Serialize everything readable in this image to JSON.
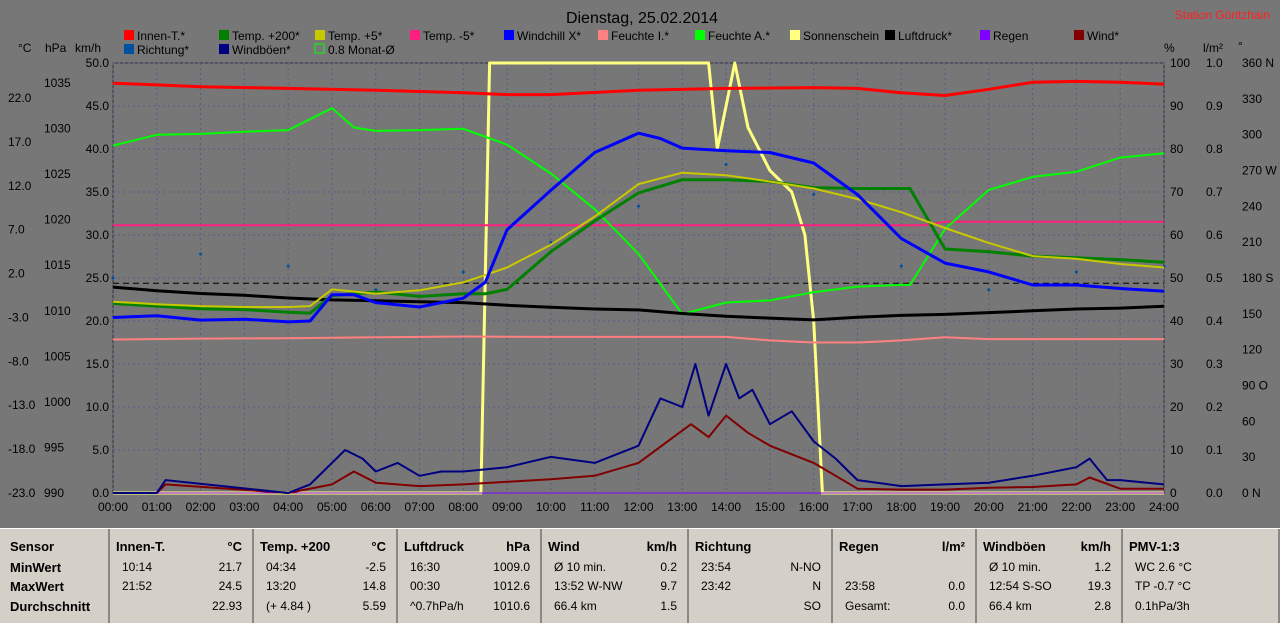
{
  "title": "Dienstag, 25.02.2014",
  "station": "Station Göritzhain",
  "legend": [
    {
      "label": "Innen-T.*",
      "color": "#ff0000"
    },
    {
      "label": "Temp. +200*",
      "color": "#008000"
    },
    {
      "label": "Temp. +5*",
      "color": "#c8c800"
    },
    {
      "label": "Temp. -5*",
      "color": "#ff1f7f"
    },
    {
      "label": "Windchill X*",
      "color": "#0000ff"
    },
    {
      "label": "Feuchte I.*",
      "color": "#ff8080"
    },
    {
      "label": "Feuchte A.*",
      "color": "#00ff00"
    },
    {
      "label": "Sonnenschein",
      "color": "#ffff80"
    },
    {
      "label": "Luftdruck*",
      "color": "#000000"
    },
    {
      "label": "Regen",
      "color": "#8000ff"
    },
    {
      "label": "Wind*",
      "color": "#800000"
    },
    {
      "label": "Richtung*",
      "color": "#0050a0"
    },
    {
      "label": "Windböen*",
      "color": "#000080"
    },
    {
      "label": "0.8 Monat-Ø",
      "color": "#00ff00"
    }
  ],
  "axis_units": {
    "celsius": "°C",
    "hpa": "hPa",
    "kmh": "km/h",
    "percent": "%",
    "lm2": "l/m²",
    "deg": "°"
  },
  "left_ticks_c": [
    "22.0",
    "17.0",
    "12.0",
    "7.0",
    "2.0",
    "-3.0",
    "-8.0",
    "-13.0",
    "-18.0",
    "-23.0"
  ],
  "left_ticks_hpa": [
    "1035",
    "1030",
    "1025",
    "1020",
    "1015",
    "1010",
    "1005",
    "1000",
    "995",
    "990"
  ],
  "left_ticks_kmh": [
    "50.0",
    "45.0",
    "40.0",
    "35.0",
    "30.0",
    "25.0",
    "20.0",
    "15.0",
    "10.0",
    "5.0",
    "0.0"
  ],
  "right_ticks_pct": [
    "100",
    "90",
    "80",
    "70",
    "60",
    "50",
    "40",
    "30",
    "20",
    "10",
    "0"
  ],
  "right_ticks_lm2": [
    "1.0",
    "0.9",
    "0.8",
    "0.7",
    "0.6",
    "0.5",
    "0.4",
    "0.3",
    "0.2",
    "0.1",
    "0.0"
  ],
  "right_ticks_deg": [
    "360 N",
    "330",
    "300",
    "270 W",
    "240",
    "210",
    "180 S",
    "150",
    "120",
    "90 O",
    "60",
    "30",
    "0 N"
  ],
  "x_ticks": [
    "00:00",
    "01:00",
    "02:00",
    "03:00",
    "04:00",
    "05:00",
    "06:00",
    "07:00",
    "08:00",
    "09:00",
    "10:00",
    "11:00",
    "12:00",
    "13:00",
    "14:00",
    "15:00",
    "16:00",
    "17:00",
    "18:00",
    "19:00",
    "20:00",
    "21:00",
    "22:00",
    "23:00",
    "24:00"
  ],
  "chart_data": {
    "type": "line",
    "title": "Dienstag, 25.02.2014",
    "x_unit": "hour",
    "xlim": [
      0,
      24
    ],
    "temp_axis_c": [
      -23,
      26
    ],
    "pressure_axis_hpa": [
      990,
      1037.2
    ],
    "wind_axis_kmh": [
      0,
      50
    ],
    "percent_axis": [
      0,
      100
    ],
    "series": [
      {
        "name": "Innen-T.*",
        "color": "#ff0000",
        "unit": "°C",
        "x": [
          0,
          1,
          2,
          4,
          6,
          8,
          9,
          10,
          12,
          14,
          16,
          17,
          18,
          19,
          20,
          21,
          22,
          23,
          24
        ],
        "y": [
          23.7,
          23.5,
          23.3,
          23.1,
          22.9,
          22.6,
          22.4,
          22.4,
          22.9,
          23.1,
          23.2,
          23.1,
          22.6,
          22.3,
          23.0,
          23.8,
          23.9,
          23.8,
          23.6
        ]
      },
      {
        "name": "Temp. +200*",
        "color": "#008000",
        "unit": "°C",
        "x": [
          0,
          1,
          2,
          3,
          4,
          4.5,
          5,
          6,
          7,
          8,
          8.5,
          9,
          10,
          11,
          12,
          13,
          14,
          15,
          16,
          17,
          18,
          18.2,
          19,
          20,
          21,
          22,
          23,
          24
        ],
        "y": [
          -1.4,
          -1.7,
          -2.0,
          -2.1,
          -2.4,
          -2.5,
          -0.5,
          -0.1,
          -0.6,
          -0.3,
          -0.3,
          0.2,
          4.5,
          8.0,
          11.2,
          12.7,
          12.7,
          12.5,
          11.8,
          11.7,
          11.7,
          11.7,
          4.8,
          4.5,
          4.0,
          3.8,
          3.6,
          3.3
        ]
      },
      {
        "name": "Temp. +5*",
        "color": "#c8c800",
        "unit": "°C",
        "x": [
          0,
          1,
          2,
          3,
          4,
          4.5,
          5,
          6,
          7,
          8,
          9,
          10,
          11,
          12,
          13,
          14,
          15,
          16,
          17,
          18,
          19,
          20,
          21,
          22,
          23,
          24
        ],
        "y": [
          -1.2,
          -1.5,
          -1.7,
          -1.8,
          -1.8,
          -1.7,
          0.2,
          -0.3,
          0.1,
          1.0,
          2.7,
          5.3,
          8.5,
          12.2,
          13.5,
          13.2,
          12.5,
          11.7,
          10.5,
          9.0,
          7.2,
          5.5,
          4.0,
          3.7,
          3.1,
          2.7
        ]
      },
      {
        "name": "Temp. -5*",
        "color": "#ff1f7f",
        "unit": "°C",
        "x": [
          0,
          18.5,
          19,
          24
        ],
        "y": [
          7.5,
          7.5,
          7.9,
          7.9
        ]
      },
      {
        "name": "Windchill X*",
        "color": "#0000ff",
        "unit": "°C",
        "x": [
          0,
          1,
          2,
          3,
          4,
          4.5,
          5,
          5.5,
          6,
          7,
          8,
          8.5,
          9,
          10,
          11,
          12,
          12.5,
          13,
          14,
          15,
          16,
          17,
          18,
          19,
          20,
          21,
          22,
          23,
          24
        ],
        "y": [
          -3.0,
          -2.8,
          -3.3,
          -3.2,
          -3.5,
          -3.4,
          -0.4,
          -0.4,
          -1.3,
          -1.8,
          -0.8,
          1.0,
          7.0,
          11.5,
          15.8,
          18.0,
          17.4,
          16.3,
          16.0,
          15.8,
          14.6,
          11.0,
          6.0,
          3.2,
          2.2,
          0.7,
          0.7,
          0.3,
          0.0
        ]
      },
      {
        "name": "Feuchte I.*",
        "color": "#ff8080",
        "unit": "%",
        "x": [
          0,
          2,
          4,
          6,
          8,
          10,
          12,
          14,
          15,
          16,
          17,
          18,
          19,
          20,
          24
        ],
        "y": [
          35.7,
          35.9,
          36.0,
          36.2,
          36.4,
          36.3,
          36.3,
          36.3,
          35.5,
          35.0,
          35.0,
          35.5,
          36.2,
          35.8,
          35.8
        ]
      },
      {
        "name": "Feuchte A.*",
        "color": "#00ff00",
        "unit": "%",
        "x": [
          0,
          1,
          2,
          3,
          4,
          5,
          5.5,
          6,
          7,
          8,
          9,
          10,
          11,
          12,
          13,
          14,
          15,
          16,
          17,
          18,
          18.2,
          19,
          20,
          21,
          22,
          23,
          24
        ],
        "y": [
          80.8,
          83.3,
          83.5,
          84.0,
          84.4,
          89.5,
          85.0,
          84.2,
          84.4,
          84.7,
          81.0,
          74.3,
          66.0,
          55.6,
          41.6,
          44.3,
          44.8,
          46.7,
          48.0,
          48.4,
          48.4,
          61.4,
          70.5,
          73.5,
          74.7,
          78.0,
          79.0
        ]
      },
      {
        "name": "Sonnenschein",
        "color": "#ffff80",
        "unit": "%",
        "x": [
          0,
          8.4,
          8.6,
          13.0,
          13.6,
          13.8,
          14.2,
          14.5,
          15.0,
          15.5,
          15.8,
          16.0,
          16.2,
          24
        ],
        "y": [
          0,
          0,
          100,
          100,
          100,
          80,
          100,
          85,
          75,
          70,
          60,
          40,
          0,
          0
        ]
      },
      {
        "name": "Luftdruck*",
        "color": "#000000",
        "unit": "hPa",
        "x": [
          0,
          1,
          2,
          3,
          4,
          5,
          6,
          7,
          8,
          9,
          10,
          11,
          12,
          13,
          14,
          15,
          16,
          17,
          18,
          19,
          20,
          21,
          22,
          23,
          24
        ],
        "y": [
          1012.6,
          1012.2,
          1011.9,
          1011.7,
          1011.4,
          1011.2,
          1011.1,
          1011.0,
          1010.9,
          1010.6,
          1010.4,
          1010.2,
          1010.1,
          1009.7,
          1009.4,
          1009.2,
          1009.0,
          1009.3,
          1009.5,
          1009.6,
          1009.8,
          1010.0,
          1010.2,
          1010.3,
          1010.5
        ]
      },
      {
        "name": "Regen",
        "color": "#8000ff",
        "unit": "l/m²",
        "x": [
          0,
          24
        ],
        "y": [
          0,
          0
        ]
      },
      {
        "name": "Wind*",
        "color": "#800000",
        "unit": "km/h",
        "x": [
          0,
          1,
          1.2,
          4,
          5,
          5.5,
          6,
          7,
          8,
          9,
          10,
          11,
          12,
          12.8,
          13.2,
          13.6,
          14,
          14.5,
          15,
          16,
          16.5,
          17,
          18,
          19,
          20,
          21,
          22,
          22.3,
          23,
          24
        ],
        "y": [
          0,
          0,
          1,
          0,
          1,
          2.5,
          1.2,
          0.8,
          1.0,
          1.3,
          1.6,
          2.0,
          3.5,
          6.5,
          8.0,
          6.5,
          9.0,
          7.0,
          5.5,
          3.5,
          2.0,
          0.5,
          0.4,
          0.4,
          0.6,
          0.7,
          1.0,
          1.8,
          0.5,
          0.5
        ]
      },
      {
        "name": "Windböen*",
        "color": "#000080",
        "unit": "km/h",
        "x": [
          0,
          1,
          1.2,
          4,
          4.5,
          5,
          5.3,
          5.7,
          6,
          6.5,
          7,
          7.5,
          8,
          9,
          10,
          11,
          12,
          12.5,
          13,
          13.3,
          13.6,
          14,
          14.3,
          14.6,
          15,
          15.5,
          16,
          16.5,
          17,
          18,
          19,
          20,
          21,
          21.5,
          22,
          22.3,
          22.7,
          23,
          24
        ],
        "y": [
          0,
          0,
          1.5,
          0,
          1.0,
          3.5,
          5.0,
          4.0,
          2.5,
          3.5,
          2.0,
          2.5,
          2.5,
          3.0,
          4.2,
          3.5,
          5.5,
          11.0,
          10.0,
          15.0,
          9.0,
          15.0,
          11.0,
          12.0,
          8.0,
          9.5,
          6.0,
          4.0,
          1.5,
          0.8,
          1.0,
          1.2,
          2.0,
          2.5,
          3.0,
          4.0,
          1.5,
          1.5,
          1.0
        ]
      },
      {
        "name": "Richtung*",
        "color": "#0050a0",
        "unit": "°",
        "x": [
          0,
          2,
          4,
          6,
          8,
          10,
          12,
          14,
          16,
          18,
          20,
          22,
          24
        ],
        "y": [
          180,
          200,
          190,
          170,
          185,
          210,
          240,
          275,
          250,
          190,
          170,
          185,
          190
        ]
      }
    ],
    "reference_line": {
      "label": "0.8 Monat-Ø",
      "unit": "°C",
      "value": 0.9
    }
  },
  "table": {
    "row_labels": [
      "Sensor",
      "MinWert",
      "MaxWert",
      "Durchschnitt"
    ],
    "columns": [
      {
        "name": "Innen-T.",
        "unit": "°C",
        "rows": [
          [
            "10:14",
            "21.7"
          ],
          [
            "21:52",
            "24.5"
          ],
          [
            "",
            "22.93"
          ]
        ]
      },
      {
        "name": "Temp. +200",
        "unit": "°C",
        "rows": [
          [
            "04:34",
            "-2.5"
          ],
          [
            "13:20",
            "14.8"
          ],
          [
            "(+ 4.84 )",
            "5.59"
          ]
        ]
      },
      {
        "name": "Luftdruck",
        "unit": "hPa",
        "rows": [
          [
            "16:30",
            "1009.0"
          ],
          [
            "00:30",
            "1012.6"
          ],
          [
            "^0.7hPa/h",
            "1010.6"
          ]
        ]
      },
      {
        "name": "Wind",
        "unit": "km/h",
        "rows": [
          [
            "Ø 10 min.",
            "0.2"
          ],
          [
            "13:52   W-NW",
            "9.7"
          ],
          [
            "66.4 km",
            "1.5"
          ]
        ]
      },
      {
        "name": "Richtung",
        "unit": "",
        "rows": [
          [
            "23:54",
            "N-NO"
          ],
          [
            "23:42",
            "N"
          ],
          [
            "",
            "SO"
          ]
        ]
      },
      {
        "name": "Regen",
        "unit": "l/m²",
        "rows": [
          [
            "",
            ""
          ],
          [
            "23:58",
            "0.0"
          ],
          [
            "Gesamt:",
            "0.0"
          ]
        ]
      },
      {
        "name": "Windböen",
        "unit": "km/h",
        "rows": [
          [
            "Ø 10 min.",
            "1.2"
          ],
          [
            "12:54   S-SO",
            "19.3"
          ],
          [
            "66.4 km",
            "2.8"
          ]
        ]
      },
      {
        "name": "PMV-1:3",
        "unit": "",
        "rows": [
          [
            "WC 2.6 °C",
            ""
          ],
          [
            "TP -0.7 °C",
            ""
          ],
          [
            "0.1hPa/3h",
            ""
          ]
        ]
      }
    ]
  }
}
